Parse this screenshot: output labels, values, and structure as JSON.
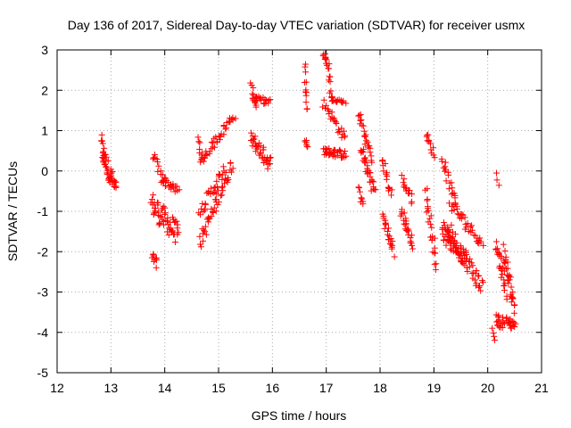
{
  "chart_data": {
    "type": "scatter",
    "title": "Day 136 of 2017, Sidereal Day-to-day VTEC variation (SDTVAR) for receiver usmx",
    "xlabel": "GPS time / hours",
    "ylabel": "SDTVAR / TECUs",
    "xlim": [
      12,
      21
    ],
    "ylim": [
      -5,
      3
    ],
    "xticks": [
      12,
      13,
      14,
      15,
      16,
      17,
      18,
      19,
      20,
      21
    ],
    "yticks": [
      -5,
      -4,
      -3,
      -2,
      -1,
      0,
      1,
      2,
      3
    ],
    "grid": true,
    "marker": "+",
    "color": "#ff0000",
    "segments": [
      {
        "x0": 12.82,
        "x1": 12.88,
        "y0": 0.8,
        "y1": 0.2,
        "spread": 0.15,
        "n": 12
      },
      {
        "x0": 12.85,
        "x1": 13.1,
        "y0": 0.4,
        "y1": -0.5,
        "spread": 0.25,
        "n": 40
      },
      {
        "x0": 13.78,
        "x1": 13.85,
        "y0": -2.1,
        "y1": -2.3,
        "spread": 0.1,
        "n": 10
      },
      {
        "x0": 13.75,
        "x1": 14.25,
        "y0": -0.8,
        "y1": -1.6,
        "spread": 0.3,
        "n": 55
      },
      {
        "x0": 13.78,
        "x1": 14.0,
        "y0": 0.4,
        "y1": -0.3,
        "spread": 0.12,
        "n": 14
      },
      {
        "x0": 13.95,
        "x1": 14.25,
        "y0": -0.2,
        "y1": -0.5,
        "spread": 0.1,
        "n": 20
      },
      {
        "x0": 14.62,
        "x1": 14.7,
        "y0": 0.8,
        "y1": 0.3,
        "spread": 0.1,
        "n": 8
      },
      {
        "x0": 14.65,
        "x1": 15.3,
        "y0": 0.2,
        "y1": 1.4,
        "spread": 0.12,
        "n": 40
      },
      {
        "x0": 14.65,
        "x1": 15.25,
        "y0": -1.8,
        "y1": 0.2,
        "spread": 0.2,
        "n": 45
      },
      {
        "x0": 14.65,
        "x1": 15.1,
        "y0": -1.0,
        "y1": 0.0,
        "spread": 0.15,
        "n": 30
      },
      {
        "x0": 15.6,
        "x1": 15.7,
        "y0": 2.1,
        "y1": 1.6,
        "spread": 0.1,
        "n": 12
      },
      {
        "x0": 15.65,
        "x1": 15.95,
        "y0": 1.8,
        "y1": 1.7,
        "spread": 0.08,
        "n": 20
      },
      {
        "x0": 15.6,
        "x1": 15.95,
        "y0": 0.8,
        "y1": 0.2,
        "spread": 0.2,
        "n": 40
      },
      {
        "x0": 16.6,
        "x1": 16.65,
        "y0": 2.6,
        "y1": 1.5,
        "spread": 0.1,
        "n": 12
      },
      {
        "x0": 16.62,
        "x1": 16.65,
        "y0": 0.8,
        "y1": 0.6,
        "spread": 0.1,
        "n": 6
      },
      {
        "x0": 16.95,
        "x1": 17.05,
        "y0": 2.9,
        "y1": 2.6,
        "spread": 0.1,
        "n": 12
      },
      {
        "x0": 17.05,
        "x1": 17.1,
        "y0": 2.5,
        "y1": 1.7,
        "spread": 0.1,
        "n": 10
      },
      {
        "x0": 17.1,
        "x1": 17.35,
        "y0": 1.8,
        "y1": 1.7,
        "spread": 0.05,
        "n": 15
      },
      {
        "x0": 16.95,
        "x1": 17.35,
        "y0": 1.7,
        "y1": 0.8,
        "spread": 0.12,
        "n": 25
      },
      {
        "x0": 16.95,
        "x1": 17.35,
        "y0": 0.5,
        "y1": 0.4,
        "spread": 0.1,
        "n": 35
      },
      {
        "x0": 17.6,
        "x1": 17.85,
        "y0": 1.4,
        "y1": 0.3,
        "spread": 0.15,
        "n": 25
      },
      {
        "x0": 17.65,
        "x1": 17.9,
        "y0": 0.5,
        "y1": -0.5,
        "spread": 0.2,
        "n": 30
      },
      {
        "x0": 17.6,
        "x1": 17.7,
        "y0": -0.4,
        "y1": -0.9,
        "spread": 0.1,
        "n": 8
      },
      {
        "x0": 18.05,
        "x1": 18.2,
        "y0": 0.3,
        "y1": -0.6,
        "spread": 0.15,
        "n": 15
      },
      {
        "x0": 18.05,
        "x1": 18.25,
        "y0": -1.1,
        "y1": -2.0,
        "spread": 0.15,
        "n": 22
      },
      {
        "x0": 18.4,
        "x1": 18.6,
        "y0": -0.2,
        "y1": -0.7,
        "spread": 0.12,
        "n": 15
      },
      {
        "x0": 18.4,
        "x1": 18.6,
        "y0": -1.0,
        "y1": -1.8,
        "spread": 0.15,
        "n": 25
      },
      {
        "x0": 18.85,
        "x1": 19.0,
        "y0": 0.9,
        "y1": 0.4,
        "spread": 0.1,
        "n": 12
      },
      {
        "x0": 18.85,
        "x1": 19.05,
        "y0": -0.5,
        "y1": -2.3,
        "spread": 0.25,
        "n": 25
      },
      {
        "x0": 19.15,
        "x1": 19.4,
        "y0": 0.3,
        "y1": -0.8,
        "spread": 0.15,
        "n": 20
      },
      {
        "x0": 19.2,
        "x1": 19.9,
        "y0": -1.3,
        "y1": -2.9,
        "spread": 0.25,
        "n": 60
      },
      {
        "x0": 19.3,
        "x1": 19.9,
        "y0": -0.8,
        "y1": -1.8,
        "spread": 0.15,
        "n": 35
      },
      {
        "x0": 19.15,
        "x1": 19.6,
        "y0": -1.5,
        "y1": -2.2,
        "spread": 0.2,
        "n": 40
      },
      {
        "x0": 20.15,
        "x1": 20.2,
        "y0": -0.1,
        "y1": -0.4,
        "spread": 0.05,
        "n": 3
      },
      {
        "x0": 20.15,
        "x1": 20.35,
        "y0": -1.8,
        "y1": -3.0,
        "spread": 0.2,
        "n": 25
      },
      {
        "x0": 20.15,
        "x1": 20.5,
        "y0": -3.7,
        "y1": -3.8,
        "spread": 0.15,
        "n": 35
      },
      {
        "x0": 20.3,
        "x1": 20.5,
        "y0": -2.0,
        "y1": -3.4,
        "spread": 0.2,
        "n": 30
      },
      {
        "x0": 20.1,
        "x1": 20.15,
        "y0": -3.9,
        "y1": -4.2,
        "spread": 0.05,
        "n": 4
      }
    ]
  }
}
